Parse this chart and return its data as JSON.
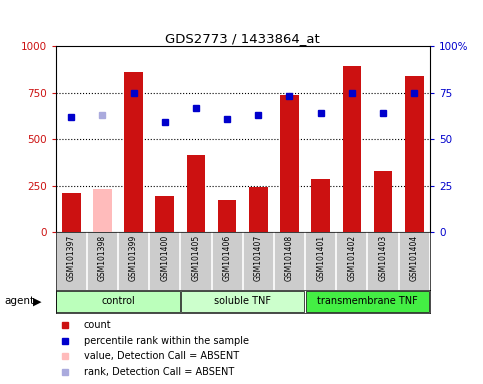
{
  "title": "GDS2773 / 1433864_at",
  "samples": [
    "GSM101397",
    "GSM101398",
    "GSM101399",
    "GSM101400",
    "GSM101405",
    "GSM101406",
    "GSM101407",
    "GSM101408",
    "GSM101401",
    "GSM101402",
    "GSM101403",
    "GSM101404"
  ],
  "counts": [
    210,
    230,
    860,
    195,
    415,
    175,
    245,
    740,
    285,
    895,
    330,
    840
  ],
  "counts_absent": [
    false,
    true,
    false,
    false,
    false,
    false,
    false,
    false,
    false,
    false,
    false,
    false
  ],
  "percentile_ranks": [
    62,
    63,
    75,
    59,
    67,
    61,
    63,
    73,
    64,
    75,
    64,
    75
  ],
  "ranks_absent": [
    false,
    true,
    false,
    false,
    false,
    false,
    false,
    false,
    false,
    false,
    false,
    false
  ],
  "groups": [
    {
      "label": "control",
      "start": 0,
      "end": 3,
      "color": "#bbffbb"
    },
    {
      "label": "soluble TNF",
      "start": 4,
      "end": 7,
      "color": "#ccffcc"
    },
    {
      "label": "transmembrane TNF",
      "start": 8,
      "end": 11,
      "color": "#44ee44"
    }
  ],
  "bar_color_normal": "#cc1111",
  "bar_color_absent": "#ffbbbb",
  "rank_color_normal": "#0000cc",
  "rank_color_absent": "#aaaadd",
  "ylim_left": [
    0,
    1000
  ],
  "ylim_right": [
    0,
    100
  ],
  "yticks_left": [
    0,
    250,
    500,
    750,
    1000
  ],
  "yticks_right": [
    0,
    25,
    50,
    75,
    100
  ],
  "bg_color": "#cccccc",
  "plot_bg": "#ffffff",
  "agent_label": "agent",
  "legend_items": [
    {
      "label": "count",
      "color": "#cc1111"
    },
    {
      "label": "percentile rank within the sample",
      "color": "#0000cc"
    },
    {
      "label": "value, Detection Call = ABSENT",
      "color": "#ffbbbb"
    },
    {
      "label": "rank, Detection Call = ABSENT",
      "color": "#aaaadd"
    }
  ]
}
